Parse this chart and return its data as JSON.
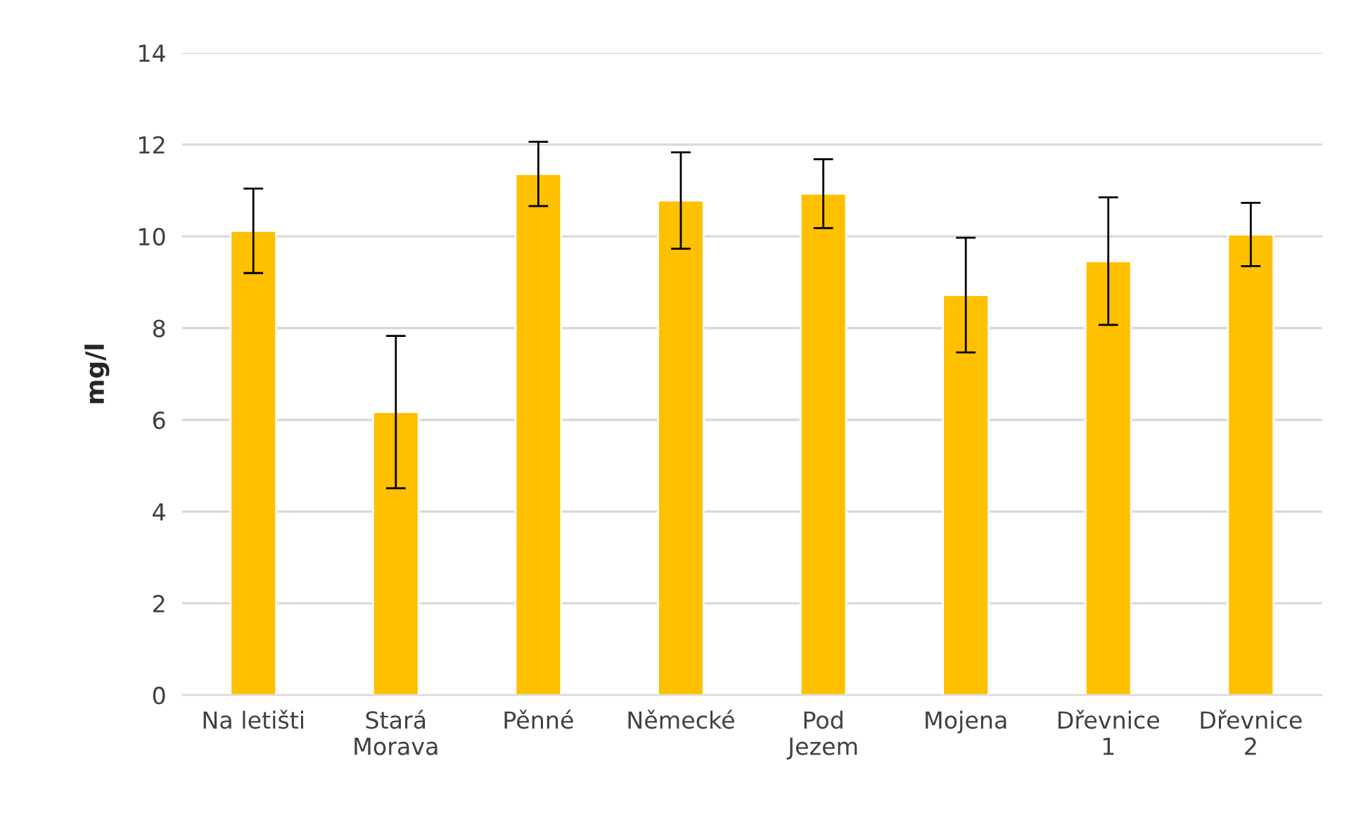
{
  "chart_data": {
    "type": "bar",
    "ylabel": "mg/l",
    "categories": [
      "Na letišti",
      "Stará\nMorava",
      "Pěnné",
      "Německé",
      "Pod\nJezem",
      "Mojena",
      "Dřevnice\n1",
      "Dřevnice\n2"
    ],
    "values": [
      10.12,
      6.17,
      11.36,
      10.78,
      10.93,
      8.72,
      9.46,
      10.04
    ],
    "errors": [
      0.92,
      1.66,
      0.7,
      1.05,
      0.75,
      1.25,
      1.39,
      0.69
    ],
    "color": "#ffc000",
    "ylim": [
      0,
      14
    ],
    "yticks": [
      0,
      2,
      4,
      6,
      8,
      10,
      12,
      14
    ],
    "grid": "y"
  }
}
